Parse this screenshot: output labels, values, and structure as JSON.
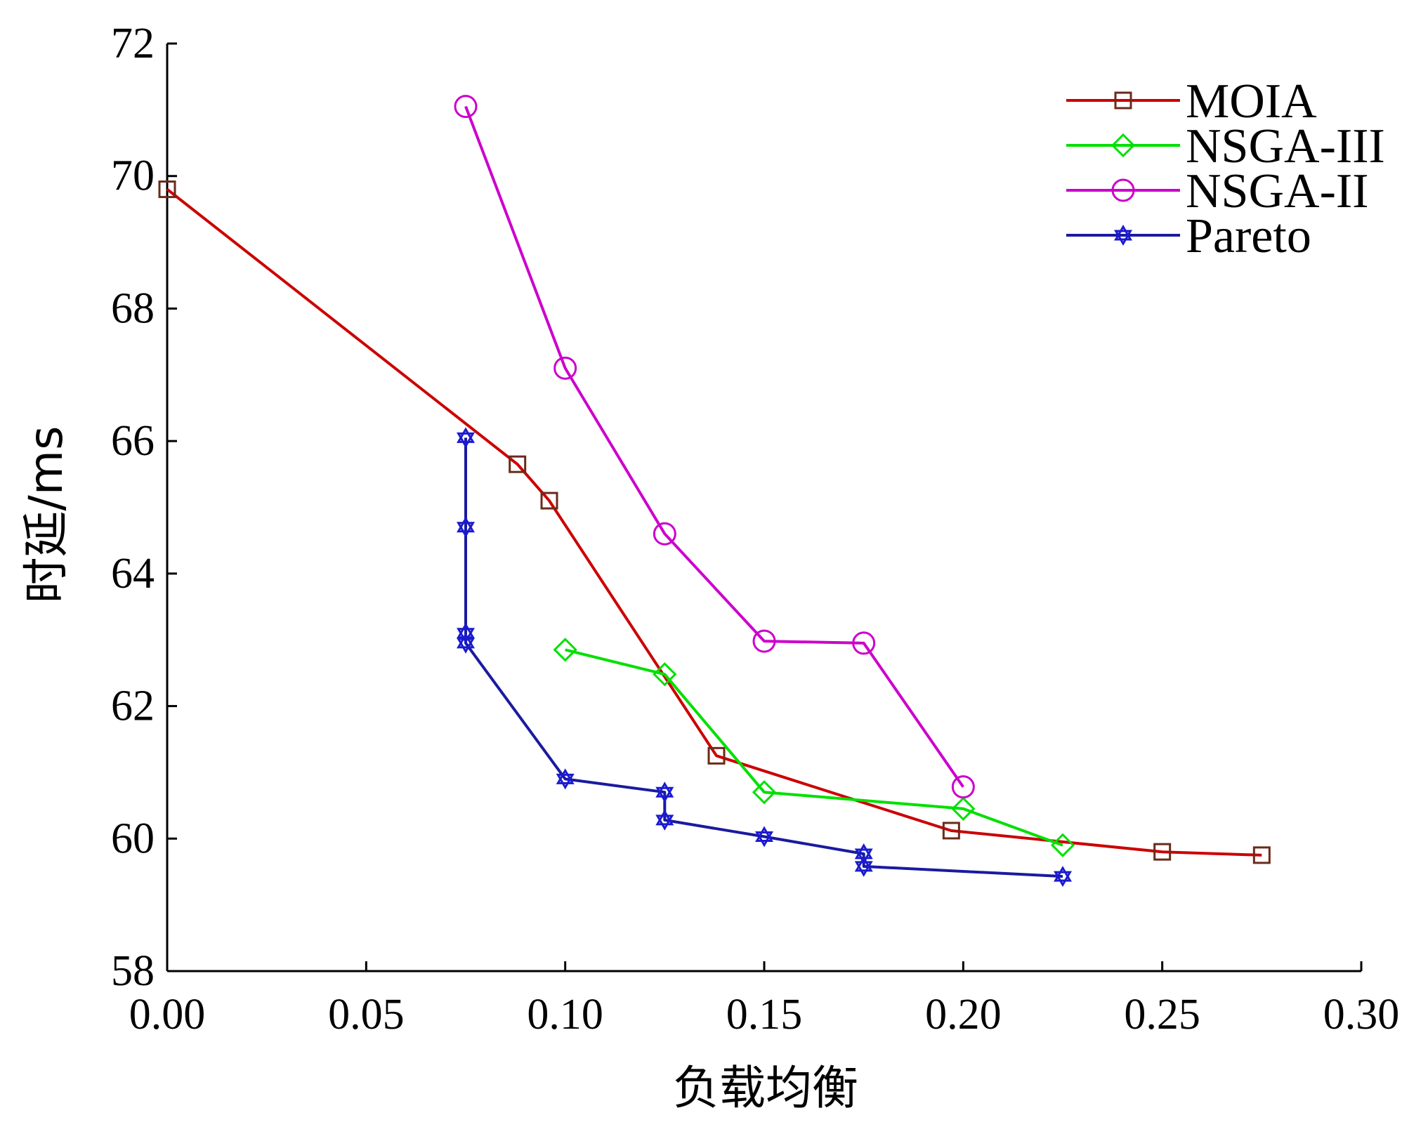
{
  "chart_data": {
    "type": "line",
    "title": "",
    "xlabel": "负载均衡",
    "ylabel": "时延/ms",
    "xlim": [
      0.0,
      0.3
    ],
    "ylim": [
      58,
      72
    ],
    "xticks": [
      "0.00",
      "0.05",
      "0.10",
      "0.15",
      "0.20",
      "0.25",
      "0.30"
    ],
    "yticks": [
      "58",
      "60",
      "62",
      "64",
      "66",
      "68",
      "70",
      "72"
    ],
    "grid": false,
    "legend_position": "top-right",
    "series": [
      {
        "name": "MOIA",
        "line_color": "#cc0000",
        "marker_color": "#6b2a1a",
        "marker": "square",
        "points": [
          [
            0.0,
            69.8
          ],
          [
            0.088,
            65.65
          ],
          [
            0.096,
            65.1
          ],
          [
            0.138,
            61.25
          ],
          [
            0.197,
            60.12
          ],
          [
            0.25,
            59.8
          ],
          [
            0.275,
            59.75
          ]
        ]
      },
      {
        "name": "NSGA-III",
        "line_color": "#00e000",
        "marker_color": "#00e000",
        "marker": "diamond",
        "points": [
          [
            0.1,
            62.85
          ],
          [
            0.125,
            62.48
          ],
          [
            0.15,
            60.7
          ],
          [
            0.2,
            60.45
          ],
          [
            0.225,
            59.9
          ]
        ]
      },
      {
        "name": "NSGA-II",
        "line_color": "#cc00cc",
        "marker_color": "#cc00cc",
        "marker": "circle",
        "points": [
          [
            0.075,
            71.05
          ],
          [
            0.1,
            67.1
          ],
          [
            0.125,
            64.6
          ],
          [
            0.15,
            62.98
          ],
          [
            0.175,
            62.95
          ],
          [
            0.2,
            60.78
          ]
        ]
      },
      {
        "name": "Pareto",
        "line_color": "#1a1aa0",
        "marker_color": "#1a1ad0",
        "marker": "hexagram",
        "points": [
          [
            0.075,
            66.05
          ],
          [
            0.075,
            64.7
          ],
          [
            0.075,
            63.1
          ],
          [
            0.075,
            62.95
          ],
          [
            0.1,
            60.9
          ],
          [
            0.125,
            60.7
          ],
          [
            0.125,
            60.28
          ],
          [
            0.15,
            60.03
          ],
          [
            0.175,
            59.77
          ],
          [
            0.175,
            59.58
          ],
          [
            0.225,
            59.43
          ]
        ]
      }
    ]
  }
}
